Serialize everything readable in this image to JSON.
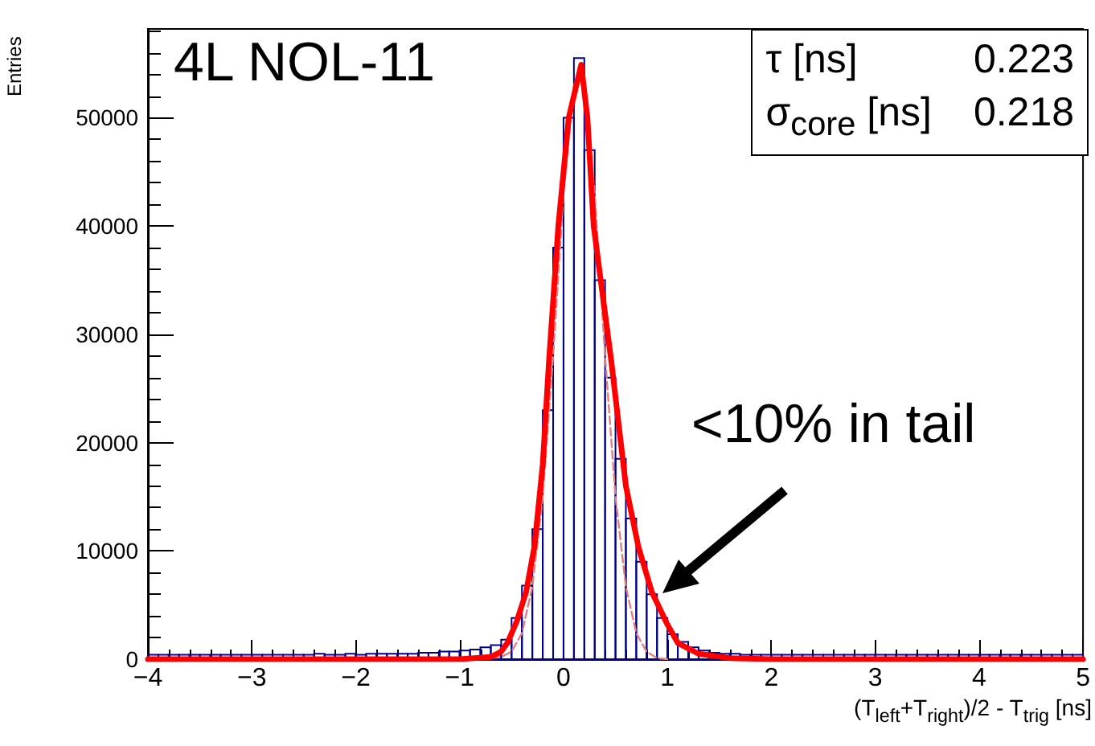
{
  "chart_data": {
    "type": "histogram",
    "xlabel": "(T$_{left}$+T$_{right}$)/2 - T$_{trig}$ [ns]",
    "ylabel": "Entries",
    "annotations": [
      "4L NOL-11",
      "τ [ns]",
      "0.223",
      "σ$_{core}$ [ns]",
      "0.218",
      "<10% in tail"
    ],
    "xlim": [
      -4,
      5
    ],
    "xticks": [
      -4,
      -3,
      -2,
      -1,
      0,
      1,
      2,
      3,
      4,
      5
    ],
    "ylim": [
      0,
      58200
    ],
    "yticks": [
      0,
      10000,
      20000,
      30000,
      40000,
      50000
    ],
    "grid": false,
    "series": [
      {
        "type": "histogram",
        "color": "#00008b",
        "bins": [
          -4,
          -3.9,
          -3.8,
          -3.7,
          -3.6,
          -3.5,
          -3.4,
          -3.3,
          -3.2,
          -3.1,
          -3,
          -2.9,
          -2.8,
          -2.7,
          -2.6,
          -2.5,
          -2.4,
          -2.3,
          -2.2,
          -2.1,
          -2,
          -1.9,
          -1.8,
          -1.7,
          -1.6,
          -1.5,
          -1.4,
          -1.3,
          -1.2,
          -1.1,
          -1,
          -0.9,
          -0.8,
          -0.7,
          -0.6,
          -0.5,
          -0.4,
          -0.3,
          -0.2,
          -0.1,
          0,
          0.1,
          0.2,
          0.3,
          0.4,
          0.5,
          0.6,
          0.7,
          0.8,
          0.9,
          1,
          1.1,
          1.2,
          1.3,
          1.4,
          1.5,
          1.6,
          1.7,
          1.8,
          1.9,
          2,
          2.1,
          2.2,
          2.3,
          2.4,
          2.5,
          2.6,
          2.7,
          2.8,
          2.9,
          3,
          3.1,
          3.2,
          3.3,
          3.4,
          3.5,
          3.6,
          3.7,
          3.8,
          3.9,
          4,
          4.1,
          4.2,
          4.3,
          4.4,
          4.5,
          4.6,
          4.7,
          4.8,
          4.9,
          5
        ],
        "values": [
          400,
          400,
          400,
          400,
          400,
          400,
          400,
          400,
          400,
          400,
          400,
          400,
          400,
          400,
          400,
          400,
          500,
          400,
          400,
          500,
          400,
          500,
          500,
          500,
          500,
          500,
          600,
          600,
          700,
          700,
          800,
          900,
          1100,
          1300,
          1800,
          3800,
          6800,
          12000,
          23000,
          38000,
          50000,
          55500,
          47000,
          35000,
          26000,
          18500,
          13000,
          9000,
          6000,
          3800,
          2300,
          1600,
          1100,
          800,
          600,
          500,
          500,
          400,
          400,
          400,
          400,
          400,
          400,
          400,
          400,
          400,
          400,
          400,
          400,
          400,
          400,
          400,
          400,
          400,
          400,
          400,
          400,
          400,
          400,
          400,
          400,
          400,
          400,
          400,
          400,
          400,
          400,
          400,
          400,
          400
        ]
      },
      {
        "type": "line",
        "color": "#ff0000",
        "x": [
          -4,
          -1,
          -0.7,
          -0.6,
          -0.54,
          -0.45,
          -0.36,
          -0.28,
          -0.2,
          -0.14,
          -0.05,
          0.05,
          0.17,
          0.23,
          0.29,
          0.46,
          0.6,
          0.72,
          0.85,
          1.0,
          1.1,
          1.3,
          1.6,
          2,
          5
        ],
        "values": [
          0,
          0,
          200,
          700,
          1500,
          3500,
          6200,
          10400,
          18000,
          27500,
          40000,
          50000,
          54900,
          50000,
          40000,
          27500,
          16000,
          10400,
          6200,
          3200,
          1500,
          500,
          100,
          0,
          0
        ]
      },
      {
        "type": "line",
        "color": "#e08080",
        "line_style": "dashed",
        "x": [
          -0.8,
          -0.6,
          -0.5,
          -0.4,
          -0.3,
          -0.2,
          -0.1,
          0,
          0.1,
          0.15,
          0.2,
          0.3,
          0.4,
          0.5,
          0.6,
          0.7,
          0.8,
          0.9,
          1.0
        ],
        "values": [
          0,
          200,
          700,
          2400,
          6700,
          15000,
          28000,
          43000,
          53000,
          54000,
          53000,
          43000,
          28000,
          15000,
          6700,
          2400,
          700,
          100,
          0
        ]
      }
    ]
  }
}
